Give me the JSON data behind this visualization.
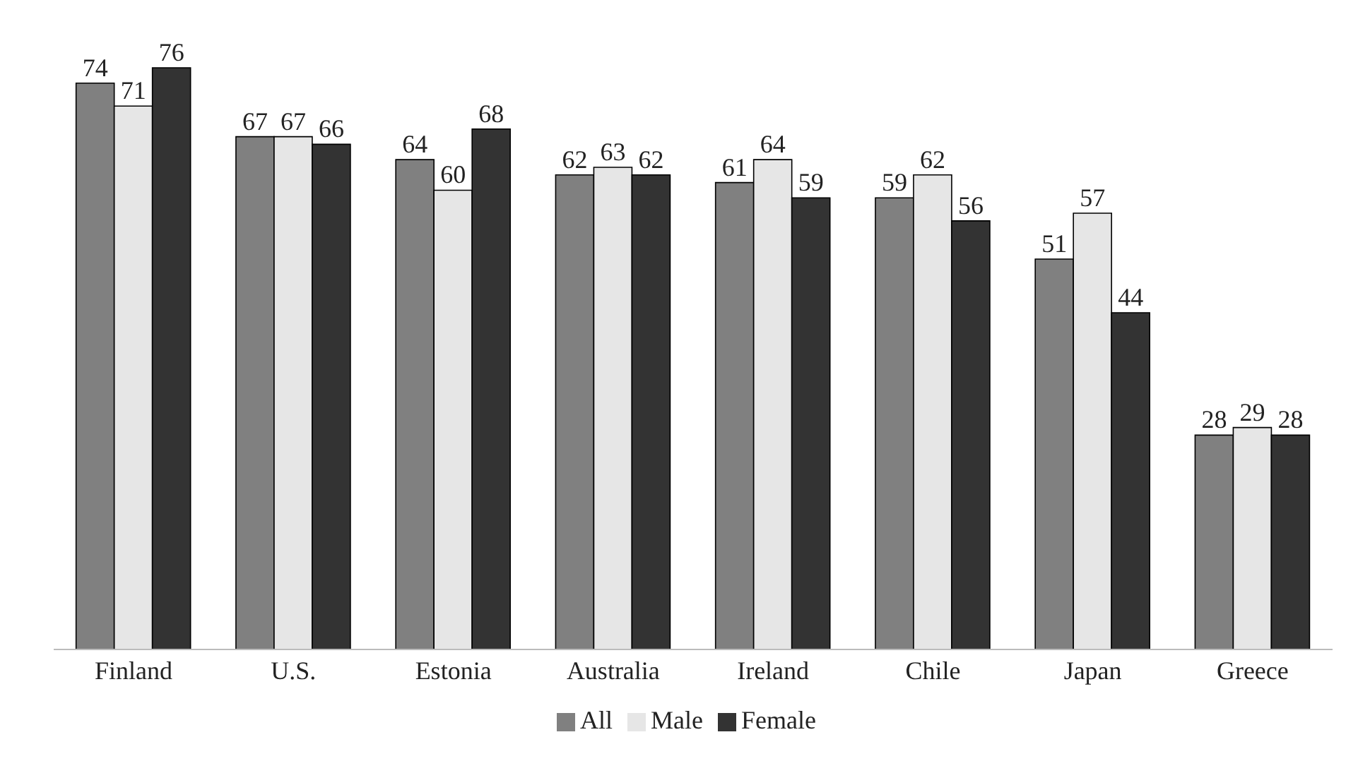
{
  "chart_data": {
    "type": "bar",
    "categories": [
      "Finland",
      "U.S.",
      "Estonia",
      "Australia",
      "Ireland",
      "Chile",
      "Japan",
      "Greece"
    ],
    "series": [
      {
        "name": "All",
        "color": "#808080",
        "values": [
          74,
          67,
          64,
          62,
          61,
          59,
          51,
          28
        ]
      },
      {
        "name": "Male",
        "color": "#e6e6e6",
        "values": [
          71,
          67,
          60,
          63,
          64,
          62,
          57,
          29
        ]
      },
      {
        "name": "Female",
        "color": "#333333",
        "values": [
          76,
          66,
          68,
          62,
          59,
          56,
          44,
          28
        ]
      }
    ],
    "data_labels": true,
    "legend": "bottom",
    "grid": false
  }
}
